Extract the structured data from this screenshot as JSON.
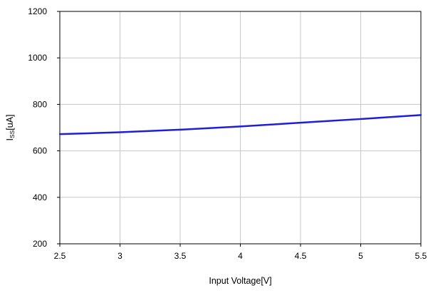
{
  "chart_data": {
    "type": "line",
    "title": "",
    "xlabel": "Input Voltage[V]",
    "ylabel": {
      "main": "I",
      "subscript": "SS",
      "suffix": "[uA]"
    },
    "xlim": [
      2.5,
      5.5
    ],
    "ylim": [
      200,
      1200
    ],
    "xticks": [
      2.5,
      3,
      3.5,
      4,
      4.5,
      5,
      5.5
    ],
    "xtick_labels": [
      "2.5",
      "3",
      "3.5",
      "4",
      "4.5",
      "5",
      "5.5"
    ],
    "yticks": [
      200,
      400,
      600,
      800,
      1000,
      1200
    ],
    "ytick_labels": [
      "200",
      "400",
      "600",
      "800",
      "1000",
      "1200"
    ],
    "grid": true,
    "legend": "none",
    "series": [
      {
        "color": "#1f1fd8",
        "x": [
          2.5,
          3,
          3.5,
          4,
          4.5,
          5,
          5.5
        ],
        "y": [
          672,
          680,
          691,
          705,
          721,
          737,
          754
        ]
      }
    ]
  }
}
